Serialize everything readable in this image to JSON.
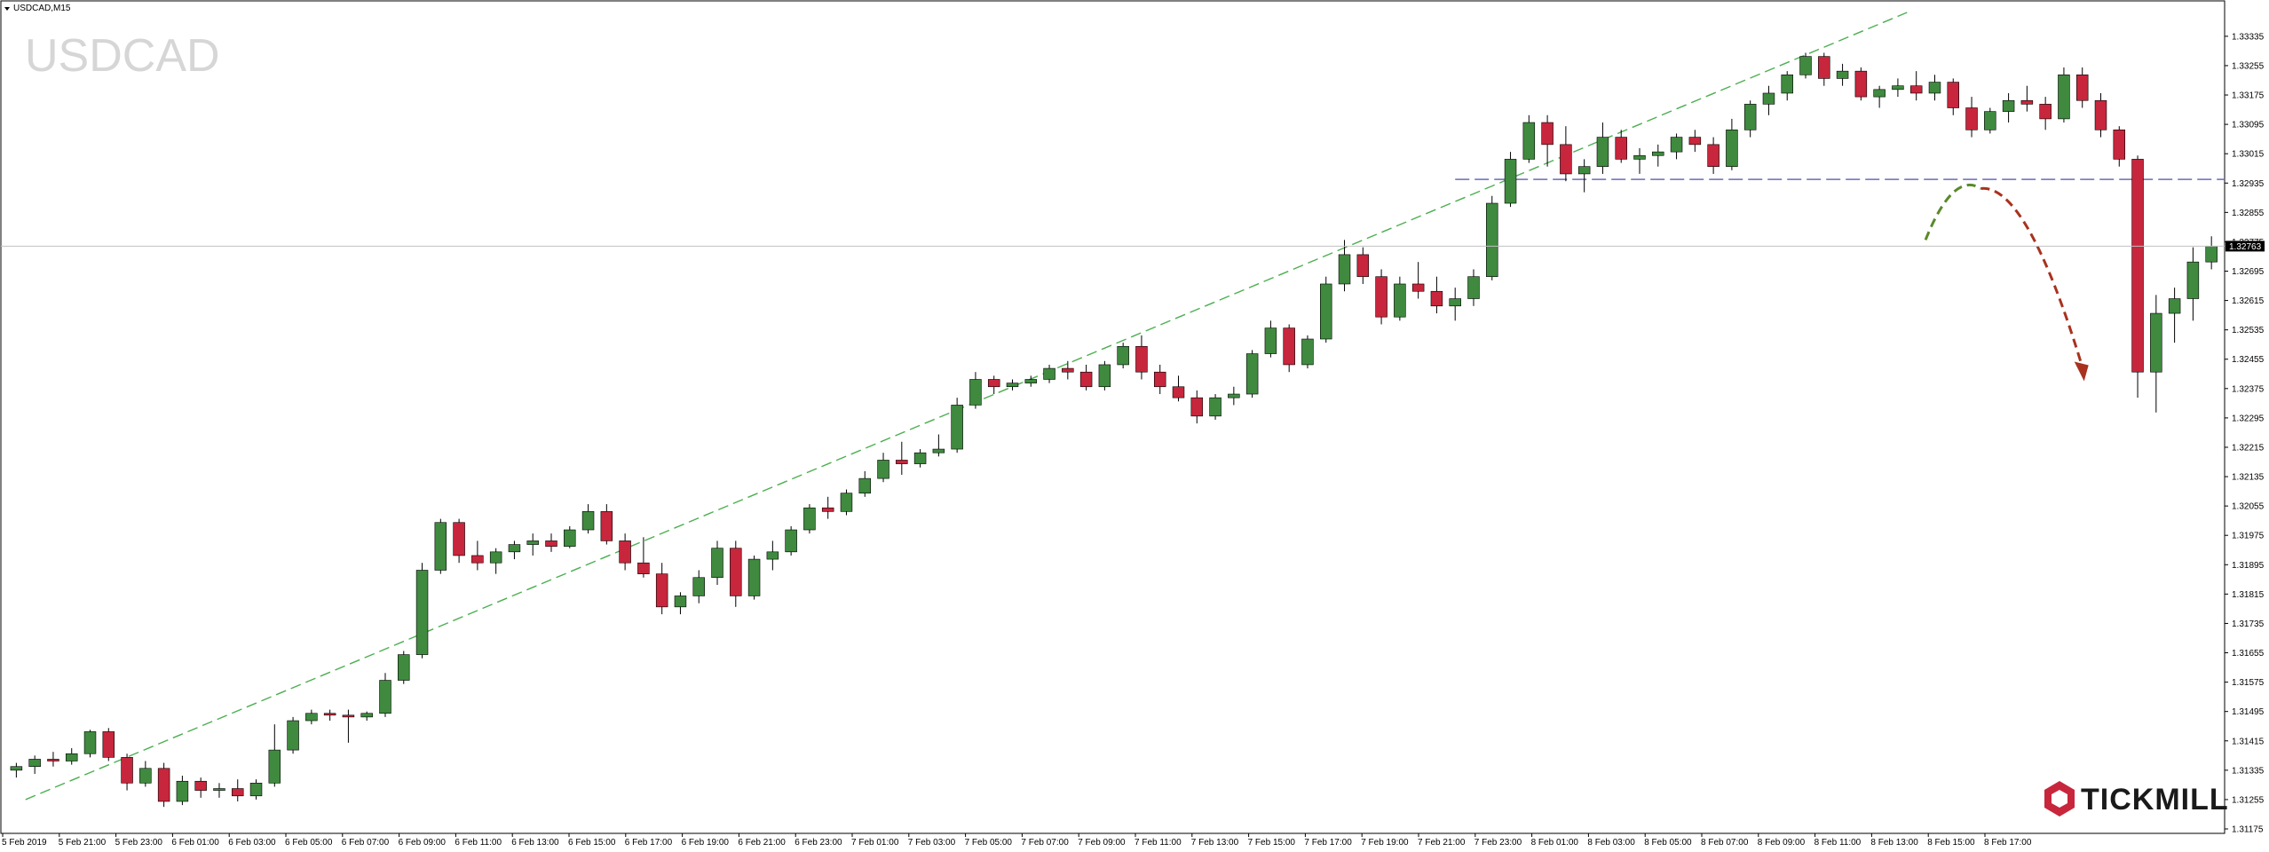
{
  "window": {
    "title": "USDCAD,M15",
    "watermark": "USDCAD",
    "brand": "TICKMILL"
  },
  "colors": {
    "bull": "#3f8a3f",
    "bear": "#c8263c",
    "wick": "#000000",
    "trendline": "#4caf50",
    "resistance": "#6b6bb8",
    "projection_up": "#5a8a2a",
    "projection_down": "#a8321e",
    "brand": "#c8263c"
  },
  "chart_data": {
    "type": "candlestick",
    "symbol": "USDCAD",
    "timeframe": "M15",
    "ylim": [
      1.31175,
      1.334
    ],
    "y_ticks": [
      "1.33335",
      "1.33255",
      "1.33175",
      "1.33095",
      "1.33015",
      "1.32935",
      "1.32855",
      "1.32775",
      "1.32695",
      "1.32615",
      "1.32535",
      "1.32455",
      "1.32375",
      "1.32295",
      "1.32215",
      "1.32135",
      "1.32055",
      "1.31975",
      "1.31895",
      "1.31815",
      "1.31735",
      "1.31655",
      "1.31575",
      "1.31495",
      "1.31415",
      "1.31335",
      "1.31255",
      "1.31175"
    ],
    "x_ticks": [
      "5 Feb 2019",
      "5 Feb 21:00",
      "5 Feb 23:00",
      "6 Feb 01:00",
      "6 Feb 03:00",
      "6 Feb 05:00",
      "6 Feb 07:00",
      "6 Feb 09:00",
      "6 Feb 11:00",
      "6 Feb 13:00",
      "6 Feb 15:00",
      "6 Feb 17:00",
      "6 Feb 19:00",
      "6 Feb 21:00",
      "6 Feb 23:00",
      "7 Feb 01:00",
      "7 Feb 03:00",
      "7 Feb 05:00",
      "7 Feb 07:00",
      "7 Feb 09:00",
      "7 Feb 11:00",
      "7 Feb 13:00",
      "7 Feb 15:00",
      "7 Feb 17:00",
      "7 Feb 19:00",
      "7 Feb 21:00",
      "7 Feb 23:00",
      "8 Feb 01:00",
      "8 Feb 03:00",
      "8 Feb 05:00",
      "8 Feb 07:00",
      "8 Feb 09:00",
      "8 Feb 11:00",
      "8 Feb 13:00",
      "8 Feb 15:00",
      "8 Feb 17:00"
    ],
    "current_price": "1.32763",
    "current_price_value": 1.32763,
    "resistance_level": 1.32945,
    "trendline": {
      "start": [
        0.5,
        1.31255
      ],
      "end": [
        102.5,
        1.334
      ]
    },
    "projection": {
      "start": [
        103.5,
        1.3278
      ],
      "peak": [
        106.5,
        1.3292
      ],
      "end": [
        112.0,
        1.324
      ]
    },
    "candles": [
      [
        1.31335,
        1.31355,
        1.31315,
        1.31345
      ],
      [
        1.31345,
        1.31375,
        1.31325,
        1.31365
      ],
      [
        1.31365,
        1.31385,
        1.31345,
        1.3136
      ],
      [
        1.3136,
        1.31395,
        1.3135,
        1.3138
      ],
      [
        1.3138,
        1.31445,
        1.3137,
        1.3144
      ],
      [
        1.3144,
        1.3145,
        1.3136,
        1.3137
      ],
      [
        1.3137,
        1.3138,
        1.3128,
        1.313
      ],
      [
        1.313,
        1.3136,
        1.3129,
        1.3134
      ],
      [
        1.3134,
        1.31355,
        1.31235,
        1.3125
      ],
      [
        1.3125,
        1.3132,
        1.3124,
        1.31305
      ],
      [
        1.31305,
        1.31315,
        1.3126,
        1.3128
      ],
      [
        1.3128,
        1.313,
        1.3126,
        1.31285
      ],
      [
        1.31285,
        1.3131,
        1.3125,
        1.31265
      ],
      [
        1.31265,
        1.3131,
        1.31255,
        1.313
      ],
      [
        1.313,
        1.3146,
        1.3129,
        1.3139
      ],
      [
        1.3139,
        1.3148,
        1.3138,
        1.3147
      ],
      [
        1.3147,
        1.315,
        1.3146,
        1.3149
      ],
      [
        1.3149,
        1.315,
        1.3147,
        1.31485
      ],
      [
        1.31485,
        1.315,
        1.3141,
        1.3148
      ],
      [
        1.3148,
        1.31495,
        1.3147,
        1.3149
      ],
      [
        1.3149,
        1.316,
        1.3148,
        1.3158
      ],
      [
        1.3158,
        1.3166,
        1.3157,
        1.3165
      ],
      [
        1.3165,
        1.319,
        1.3164,
        1.3188
      ],
      [
        1.3188,
        1.3202,
        1.3187,
        1.3201
      ],
      [
        1.3201,
        1.3202,
        1.319,
        1.3192
      ],
      [
        1.3192,
        1.3196,
        1.3188,
        1.319
      ],
      [
        1.319,
        1.3194,
        1.3187,
        1.3193
      ],
      [
        1.3193,
        1.3196,
        1.3191,
        1.3195
      ],
      [
        1.3195,
        1.3198,
        1.3192,
        1.3196
      ],
      [
        1.3196,
        1.3198,
        1.3193,
        1.31945
      ],
      [
        1.31945,
        1.32,
        1.3194,
        1.3199
      ],
      [
        1.3199,
        1.3206,
        1.3198,
        1.3204
      ],
      [
        1.3204,
        1.3206,
        1.3195,
        1.3196
      ],
      [
        1.3196,
        1.3198,
        1.3188,
        1.319
      ],
      [
        1.319,
        1.3197,
        1.3186,
        1.3187
      ],
      [
        1.3187,
        1.319,
        1.3176,
        1.3178
      ],
      [
        1.3178,
        1.3182,
        1.3176,
        1.3181
      ],
      [
        1.3181,
        1.3188,
        1.3179,
        1.3186
      ],
      [
        1.3186,
        1.3196,
        1.3184,
        1.3194
      ],
      [
        1.3194,
        1.3196,
        1.3178,
        1.3181
      ],
      [
        1.3181,
        1.3192,
        1.318,
        1.3191
      ],
      [
        1.3191,
        1.3196,
        1.3188,
        1.3193
      ],
      [
        1.3193,
        1.32,
        1.3192,
        1.3199
      ],
      [
        1.3199,
        1.3206,
        1.3198,
        1.3205
      ],
      [
        1.3205,
        1.3208,
        1.3202,
        1.3204
      ],
      [
        1.3204,
        1.321,
        1.3203,
        1.3209
      ],
      [
        1.3209,
        1.3215,
        1.3208,
        1.3213
      ],
      [
        1.3213,
        1.322,
        1.3212,
        1.3218
      ],
      [
        1.3218,
        1.3223,
        1.3214,
        1.3217
      ],
      [
        1.3217,
        1.3221,
        1.3216,
        1.322
      ],
      [
        1.322,
        1.3225,
        1.3219,
        1.3221
      ],
      [
        1.3221,
        1.3235,
        1.322,
        1.3233
      ],
      [
        1.3233,
        1.3242,
        1.3232,
        1.324
      ],
      [
        1.324,
        1.3241,
        1.3236,
        1.3238
      ],
      [
        1.3238,
        1.324,
        1.3237,
        1.3239
      ],
      [
        1.3239,
        1.3241,
        1.3238,
        1.324
      ],
      [
        1.324,
        1.3244,
        1.3239,
        1.3243
      ],
      [
        1.3243,
        1.3245,
        1.324,
        1.3242
      ],
      [
        1.3242,
        1.3244,
        1.3237,
        1.3238
      ],
      [
        1.3238,
        1.3245,
        1.3237,
        1.3244
      ],
      [
        1.3244,
        1.325,
        1.3243,
        1.3249
      ],
      [
        1.3249,
        1.3252,
        1.324,
        1.3242
      ],
      [
        1.3242,
        1.3244,
        1.3236,
        1.3238
      ],
      [
        1.3238,
        1.3241,
        1.3234,
        1.3235
      ],
      [
        1.3235,
        1.3237,
        1.3228,
        1.323
      ],
      [
        1.323,
        1.3236,
        1.3229,
        1.3235
      ],
      [
        1.3235,
        1.3238,
        1.3233,
        1.3236
      ],
      [
        1.3236,
        1.3248,
        1.3235,
        1.3247
      ],
      [
        1.3247,
        1.3256,
        1.3246,
        1.3254
      ],
      [
        1.3254,
        1.3255,
        1.3242,
        1.3244
      ],
      [
        1.3244,
        1.3252,
        1.3243,
        1.3251
      ],
      [
        1.3251,
        1.3268,
        1.325,
        1.3266
      ],
      [
        1.3266,
        1.3278,
        1.3264,
        1.3274
      ],
      [
        1.3274,
        1.3276,
        1.3266,
        1.3268
      ],
      [
        1.3268,
        1.327,
        1.3255,
        1.3257
      ],
      [
        1.3257,
        1.3268,
        1.3256,
        1.3266
      ],
      [
        1.3266,
        1.3272,
        1.3262,
        1.3264
      ],
      [
        1.3264,
        1.3268,
        1.3258,
        1.326
      ],
      [
        1.326,
        1.3265,
        1.3256,
        1.3262
      ],
      [
        1.3262,
        1.327,
        1.326,
        1.3268
      ],
      [
        1.3268,
        1.329,
        1.3267,
        1.3288
      ],
      [
        1.3288,
        1.3302,
        1.3287,
        1.33
      ],
      [
        1.33,
        1.3312,
        1.3299,
        1.331
      ],
      [
        1.331,
        1.3312,
        1.3298,
        1.3304
      ],
      [
        1.3304,
        1.3309,
        1.3294,
        1.3296
      ],
      [
        1.3296,
        1.33,
        1.3291,
        1.3298
      ],
      [
        1.3298,
        1.331,
        1.3296,
        1.3306
      ],
      [
        1.3306,
        1.3308,
        1.3299,
        1.33
      ],
      [
        1.33,
        1.3303,
        1.3296,
        1.3301
      ],
      [
        1.3301,
        1.3304,
        1.3298,
        1.3302
      ],
      [
        1.3302,
        1.3307,
        1.33,
        1.3306
      ],
      [
        1.3306,
        1.3308,
        1.3302,
        1.3304
      ],
      [
        1.3304,
        1.3306,
        1.3296,
        1.3298
      ],
      [
        1.3298,
        1.3311,
        1.3297,
        1.3308
      ],
      [
        1.3308,
        1.3316,
        1.3306,
        1.3315
      ],
      [
        1.3315,
        1.332,
        1.3312,
        1.3318
      ],
      [
        1.3318,
        1.3324,
        1.3316,
        1.3323
      ],
      [
        1.3323,
        1.3329,
        1.3322,
        1.3328
      ],
      [
        1.3328,
        1.3329,
        1.332,
        1.3322
      ],
      [
        1.3322,
        1.3326,
        1.332,
        1.3324
      ],
      [
        1.3324,
        1.3325,
        1.3316,
        1.3317
      ],
      [
        1.3317,
        1.332,
        1.3314,
        1.3319
      ],
      [
        1.3319,
        1.3322,
        1.3317,
        1.332
      ],
      [
        1.332,
        1.3324,
        1.3316,
        1.3318
      ],
      [
        1.3318,
        1.3323,
        1.3316,
        1.3321
      ],
      [
        1.3321,
        1.3322,
        1.3312,
        1.3314
      ],
      [
        1.3314,
        1.3317,
        1.3306,
        1.3308
      ],
      [
        1.3308,
        1.3314,
        1.3307,
        1.3313
      ],
      [
        1.3313,
        1.3318,
        1.331,
        1.3316
      ],
      [
        1.3316,
        1.332,
        1.3313,
        1.3315
      ],
      [
        1.3315,
        1.3317,
        1.3308,
        1.3311
      ],
      [
        1.3311,
        1.3325,
        1.331,
        1.3323
      ],
      [
        1.3323,
        1.3325,
        1.3314,
        1.3316
      ],
      [
        1.3316,
        1.3318,
        1.3306,
        1.3308
      ],
      [
        1.3308,
        1.3309,
        1.3298,
        1.33
      ],
      [
        1.33,
        1.3301,
        1.3235,
        1.3242
      ],
      [
        1.3242,
        1.3263,
        1.3231,
        1.3258
      ],
      [
        1.3258,
        1.3265,
        1.325,
        1.3262
      ],
      [
        1.3262,
        1.3276,
        1.3256,
        1.3272
      ],
      [
        1.3272,
        1.3279,
        1.327,
        1.32763
      ]
    ]
  }
}
